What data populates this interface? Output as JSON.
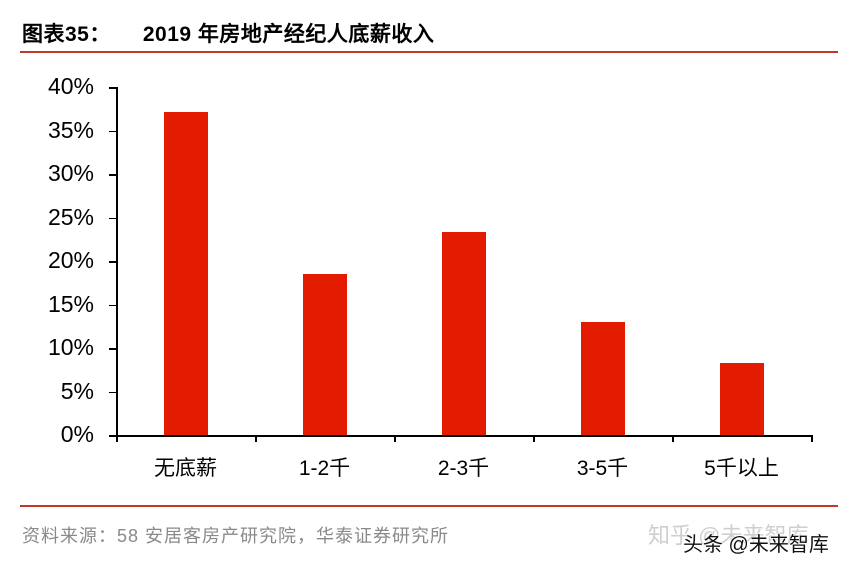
{
  "header": {
    "figure_label": "图表35：",
    "title": "2019 年房地产经纪人底薪收入"
  },
  "chart_data": {
    "type": "bar",
    "title": "2019 年房地产经纪人底薪收入",
    "categories": [
      "无底薪",
      "1-2千",
      "2-3千",
      "3-5千",
      "5千以上"
    ],
    "values": [
      37.1,
      18.5,
      23.3,
      13.0,
      8.3
    ],
    "unit": "%",
    "xlabel": "",
    "ylabel": "",
    "ylim": [
      0,
      40
    ],
    "yticks": [
      "0%",
      "5%",
      "10%",
      "15%",
      "20%",
      "25%",
      "30%",
      "35%",
      "40%"
    ],
    "bar_color": "#e31c00",
    "grid": false,
    "legend": null
  },
  "footer": {
    "source": "资料来源：58 安居客房产研究院，华泰证券研究所",
    "watermark_zhihu": "知乎 @未来智库",
    "watermark_toutiao": "头条 @未来智库"
  },
  "colors": {
    "accent_rule": "#c0392b",
    "bar": "#e31c00",
    "source_text": "#8a8a8a"
  }
}
